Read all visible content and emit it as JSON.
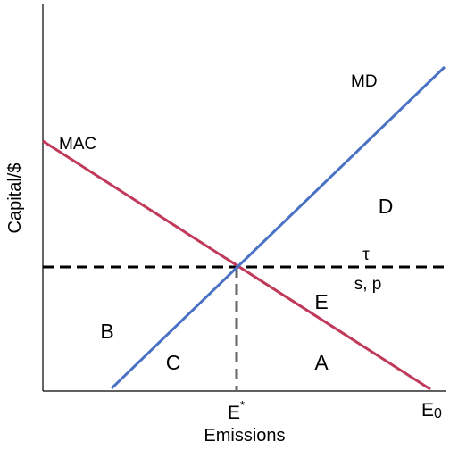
{
  "axes": {
    "y_label": "Capital/$",
    "x_label": "Emissions"
  },
  "curves": {
    "mac": "MAC",
    "md": "MD"
  },
  "tax": {
    "symbol": "τ",
    "instruments": "s, p"
  },
  "areas": {
    "a": "A",
    "b": "B",
    "c": "C",
    "d": "D",
    "e": "E"
  },
  "x_marks": {
    "optimum": {
      "base": "E",
      "sup": "*"
    },
    "initial": {
      "base": "E",
      "sub": "0"
    }
  }
}
